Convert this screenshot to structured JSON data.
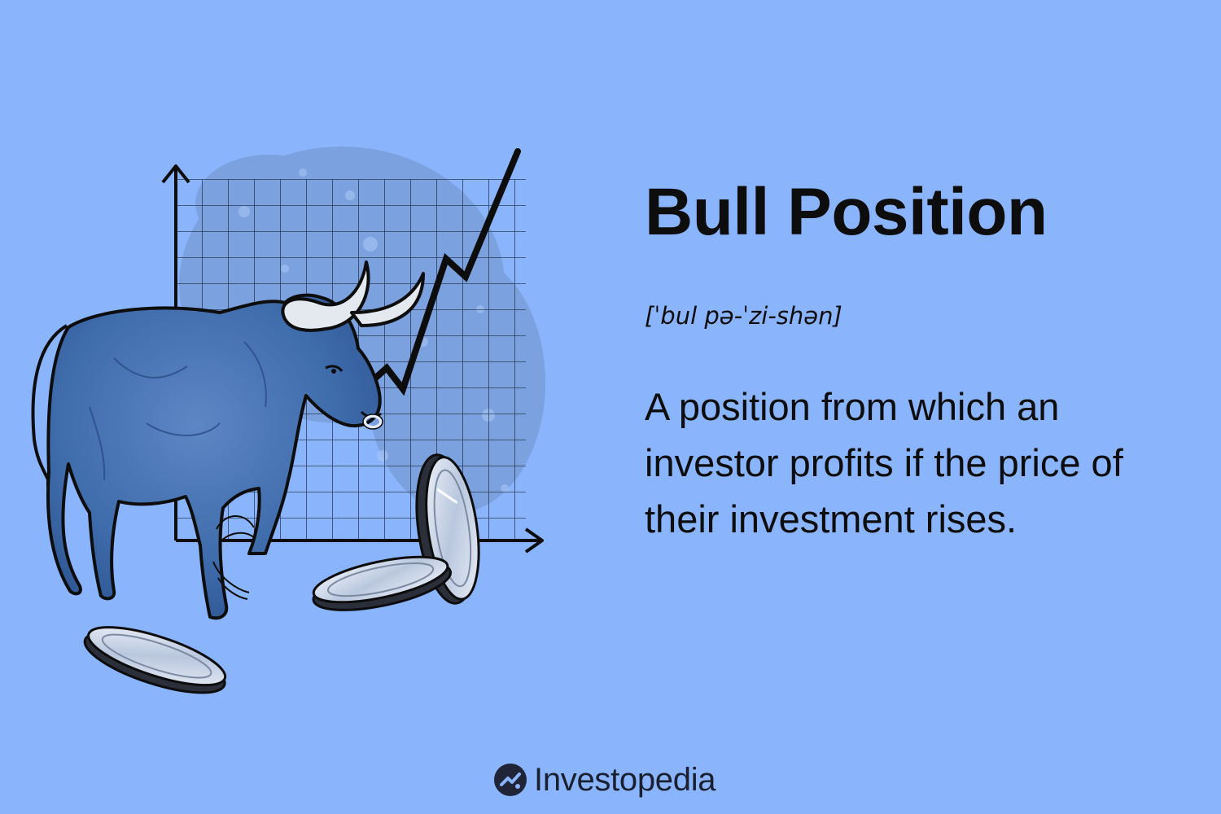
{
  "term": {
    "title": "Bull Position",
    "pronunciation": "[ˈbul pə-ˈzi-shən]",
    "definition": "A position from which an investor profits if the price of their investment rises."
  },
  "brand": {
    "name": "Investopedia"
  },
  "colors": {
    "background": "#8ab4fb",
    "bull": "#3f6cab",
    "ink": "#0d0d0d",
    "coin": "#dfe6f2"
  },
  "illustration": {
    "icons": [
      "bull-icon",
      "rising-chart-icon",
      "coin-icon"
    ]
  }
}
